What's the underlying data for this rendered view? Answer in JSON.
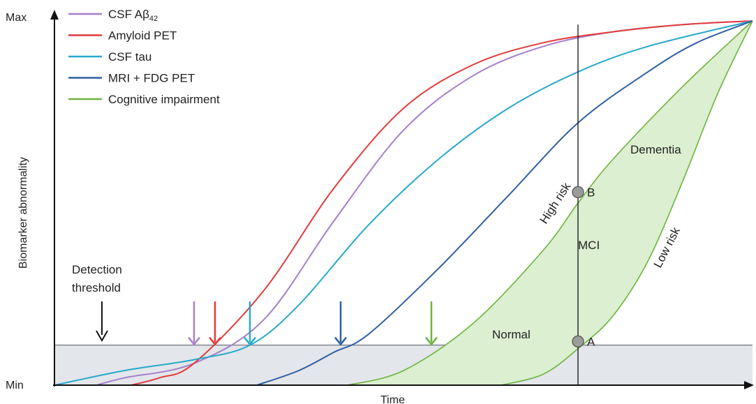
{
  "chart_data": {
    "type": "line",
    "xlabel": "Time",
    "ylabel": "Biomarker abnormality",
    "ytick_labels": [
      "Min",
      "Max"
    ],
    "ylim": [
      0,
      1
    ],
    "xlim": [
      0,
      100
    ],
    "legend_position": "top-left",
    "detection_threshold": 0.11,
    "detection_label_line1": "Detection",
    "detection_label_line2": "threshold",
    "series": [
      {
        "name": "CSF Aβ",
        "name_sub": "42",
        "color": "#a57fcb",
        "x": [
          6,
          10,
          20,
          30,
          40,
          50,
          60,
          70,
          80,
          90,
          100
        ],
        "y": [
          0.0,
          0.02,
          0.06,
          0.18,
          0.45,
          0.7,
          0.85,
          0.93,
          0.97,
          0.99,
          1.0
        ],
        "arrow_x": 20
      },
      {
        "name": "Amyloid PET",
        "color": "#e23b3b",
        "x": [
          11,
          15,
          20,
          30,
          40,
          50,
          60,
          70,
          80,
          90,
          100
        ],
        "y": [
          0.0,
          0.02,
          0.06,
          0.26,
          0.54,
          0.76,
          0.88,
          0.94,
          0.97,
          0.99,
          1.0
        ],
        "arrow_x": 23
      },
      {
        "name": "CSF tau",
        "color": "#26a9cc",
        "x": [
          0,
          10,
          20,
          28,
          35,
          45,
          55,
          65,
          75,
          85,
          100
        ],
        "y": [
          0.0,
          0.04,
          0.07,
          0.11,
          0.22,
          0.44,
          0.62,
          0.76,
          0.86,
          0.93,
          1.0
        ],
        "arrow_x": 28
      },
      {
        "name": "MRI + FDG PET",
        "color": "#2f5fa3",
        "x": [
          29,
          35,
          40,
          45,
          55,
          65,
          75,
          85,
          92,
          100
        ],
        "y": [
          0.0,
          0.04,
          0.09,
          0.14,
          0.32,
          0.52,
          0.72,
          0.86,
          0.94,
          1.0
        ],
        "arrow_x": 41
      },
      {
        "name": "Cognitive impairment",
        "color": "#6db33f",
        "arrow_x": 54
      }
    ],
    "cognitive_band": {
      "high_risk": {
        "x": [
          42,
          50,
          60,
          70,
          75,
          80,
          90,
          100
        ],
        "y": [
          0.0,
          0.04,
          0.17,
          0.37,
          0.5,
          0.62,
          0.82,
          1.0
        ]
      },
      "low_risk": {
        "x": [
          64,
          70,
          75,
          80,
          85,
          90,
          95,
          100
        ],
        "y": [
          0.0,
          0.03,
          0.1,
          0.19,
          0.34,
          0.56,
          0.8,
          1.0
        ]
      },
      "fill_color": "#dcefd0"
    },
    "marker_x": 75,
    "points": [
      {
        "label": "A",
        "y": 0.12
      },
      {
        "label": "B",
        "y": 0.53
      }
    ],
    "annotations": {
      "normal": "Normal",
      "mci": "MCI",
      "dementia": "Dementia",
      "high_risk": "High risk",
      "low_risk": "Low risk"
    }
  }
}
